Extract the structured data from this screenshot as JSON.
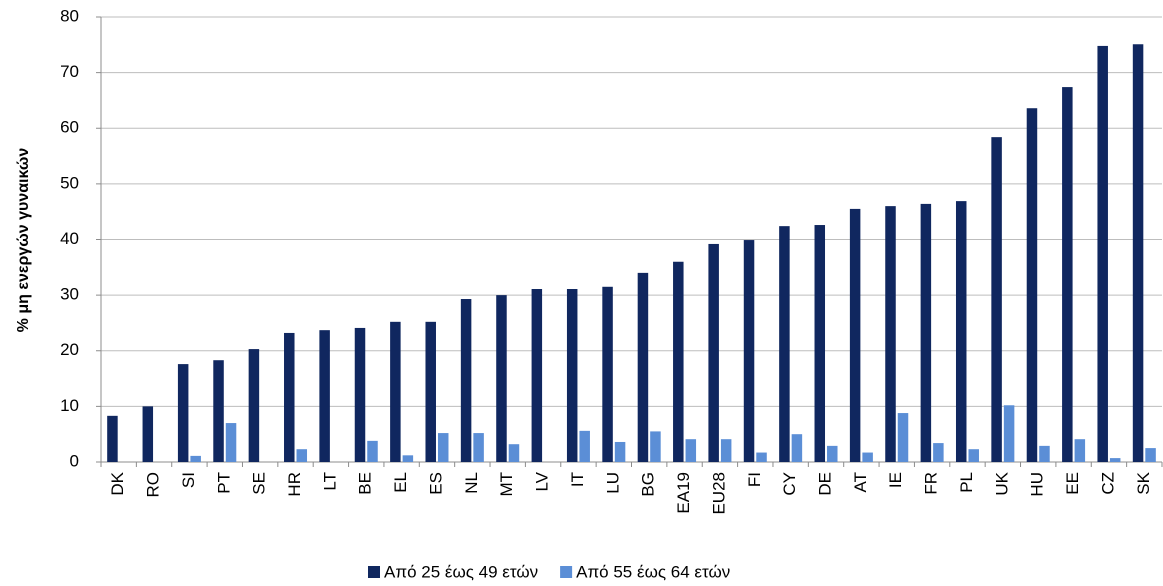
{
  "chart_data": {
    "type": "bar",
    "y_label": "% μη ενεργών γυναικών",
    "categories": [
      "DK",
      "RO",
      "SI",
      "PT",
      "SE",
      "HR",
      "LT",
      "BE",
      "EL",
      "ES",
      "NL",
      "MT",
      "LV",
      "IT",
      "LU",
      "BG",
      "EA19",
      "EU28",
      "FI",
      "CY",
      "DE",
      "AT",
      "IE",
      "FR",
      "PL",
      "UK",
      "HU",
      "EE",
      "CZ",
      "SK"
    ],
    "series": [
      {
        "name": "Από 25 έως 49 ετών",
        "color": "#10275f",
        "values": [
          8.3,
          10.0,
          17.6,
          18.3,
          20.3,
          23.2,
          23.7,
          24.1,
          25.2,
          25.2,
          29.3,
          30.0,
          31.1,
          31.1,
          31.5,
          34.0,
          36.0,
          39.2,
          39.9,
          42.4,
          42.6,
          45.5,
          46.0,
          46.4,
          46.9,
          58.4,
          63.6,
          67.4,
          74.8,
          75.1
        ]
      },
      {
        "name": "Από  55 έως 64 ετών",
        "color": "#5b8ed6",
        "values": [
          null,
          null,
          1.1,
          7.0,
          null,
          2.3,
          null,
          3.8,
          1.2,
          5.2,
          5.2,
          3.2,
          null,
          5.6,
          3.6,
          5.5,
          4.1,
          4.1,
          1.7,
          5.0,
          2.9,
          1.7,
          8.8,
          3.4,
          2.3,
          10.2,
          2.9,
          4.1,
          0.7,
          2.5
        ]
      }
    ],
    "ylim": [
      0,
      80
    ],
    "yticks": [
      0,
      10,
      20,
      30,
      40,
      50,
      60,
      70,
      80
    ],
    "grid": true
  }
}
